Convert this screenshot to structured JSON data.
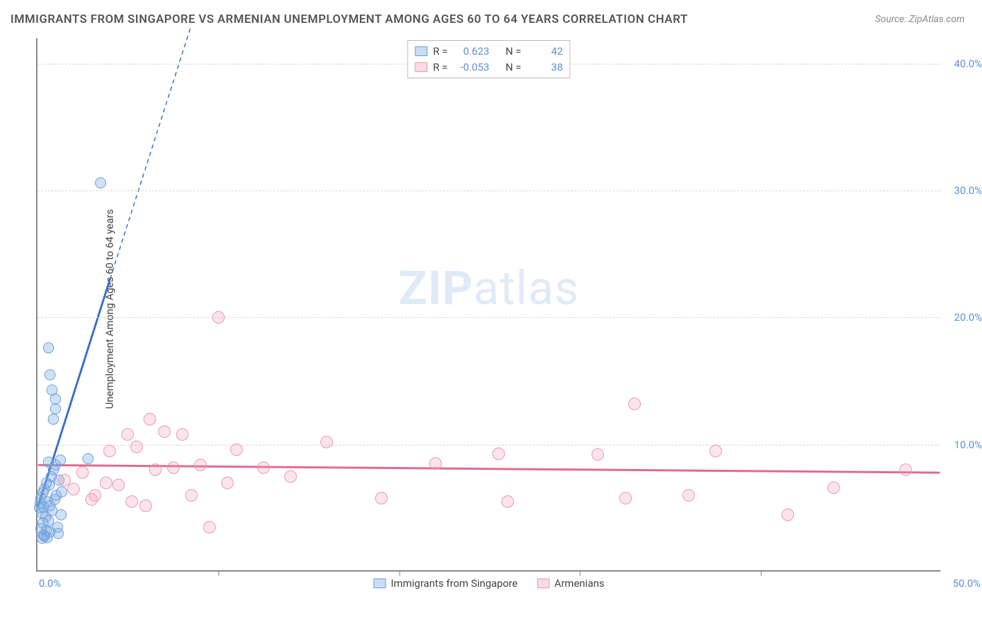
{
  "title": "IMMIGRANTS FROM SINGAPORE VS ARMENIAN UNEMPLOYMENT AMONG AGES 60 TO 64 YEARS CORRELATION CHART",
  "source": "Source: ZipAtlas.com",
  "y_axis_label": "Unemployment Among Ages 60 to 64 years",
  "watermark_bold": "ZIP",
  "watermark_rest": "atlas",
  "x_axis": {
    "min": 0,
    "max": 50,
    "ticks": [
      0,
      10,
      20,
      30,
      40,
      50
    ],
    "tick_labels": [
      "0.0%",
      "",
      "",
      "",
      "",
      "50.0%"
    ]
  },
  "y_axis": {
    "min": 0,
    "max": 42,
    "ticks": [
      10,
      20,
      30,
      40
    ],
    "tick_labels": [
      "10.0%",
      "20.0%",
      "30.0%",
      "40.0%"
    ]
  },
  "series": [
    {
      "name": "Immigrants from Singapore",
      "color_key": "blue",
      "r_value": "0.623",
      "n_value": "42",
      "trend": {
        "x1": 0,
        "y1": 5.0,
        "x2": 4.0,
        "y2": 23.0,
        "dash_x2": 8.5,
        "dash_y2": 43.0,
        "color": "#3a6fc4",
        "width": 3
      },
      "points": [
        [
          0.1,
          5.0
        ],
        [
          0.15,
          5.4
        ],
        [
          0.2,
          5.8
        ],
        [
          0.25,
          4.6
        ],
        [
          0.3,
          6.2
        ],
        [
          0.35,
          5.1
        ],
        [
          0.4,
          6.5
        ],
        [
          0.45,
          4.3
        ],
        [
          0.5,
          7.0
        ],
        [
          0.55,
          5.5
        ],
        [
          0.6,
          4.0
        ],
        [
          0.65,
          6.8
        ],
        [
          0.7,
          5.2
        ],
        [
          0.75,
          7.5
        ],
        [
          0.8,
          4.8
        ],
        [
          0.9,
          8.0
        ],
        [
          0.95,
          5.7
        ],
        [
          1.0,
          8.4
        ],
        [
          1.05,
          6.0
        ],
        [
          1.1,
          3.5
        ],
        [
          1.15,
          3.0
        ],
        [
          1.2,
          7.2
        ],
        [
          1.25,
          8.8
        ],
        [
          1.3,
          4.5
        ],
        [
          1.35,
          6.3
        ],
        [
          0.3,
          3.8
        ],
        [
          0.5,
          3.2
        ],
        [
          0.6,
          8.6
        ],
        [
          0.9,
          12.0
        ],
        [
          1.0,
          12.8
        ],
        [
          1.0,
          13.6
        ],
        [
          0.8,
          14.3
        ],
        [
          0.7,
          15.5
        ],
        [
          0.6,
          17.6
        ],
        [
          3.5,
          30.6
        ],
        [
          2.8,
          8.9
        ],
        [
          0.4,
          2.8
        ],
        [
          0.2,
          3.4
        ],
        [
          0.25,
          2.6
        ],
        [
          0.35,
          2.9
        ],
        [
          0.55,
          2.7
        ],
        [
          0.7,
          3.1
        ]
      ]
    },
    {
      "name": "Armenians",
      "color_key": "pink",
      "r_value": "-0.053",
      "n_value": "38",
      "trend": {
        "x1": 0,
        "y1": 8.3,
        "x2": 50,
        "y2": 7.7,
        "color": "#e06a8c",
        "width": 3
      },
      "points": [
        [
          1.5,
          7.2
        ],
        [
          2.0,
          6.5
        ],
        [
          2.5,
          7.8
        ],
        [
          3.0,
          5.7
        ],
        [
          3.2,
          6.0
        ],
        [
          3.8,
          7.0
        ],
        [
          4.0,
          9.5
        ],
        [
          4.5,
          6.8
        ],
        [
          5.0,
          10.8
        ],
        [
          5.2,
          5.5
        ],
        [
          5.5,
          9.8
        ],
        [
          6.0,
          5.2
        ],
        [
          6.2,
          12.0
        ],
        [
          6.5,
          8.0
        ],
        [
          7.0,
          11.0
        ],
        [
          7.5,
          8.2
        ],
        [
          8.0,
          10.8
        ],
        [
          8.5,
          6.0
        ],
        [
          9.0,
          8.4
        ],
        [
          9.5,
          3.5
        ],
        [
          10.0,
          20.0
        ],
        [
          10.5,
          7.0
        ],
        [
          11.0,
          9.6
        ],
        [
          12.5,
          8.2
        ],
        [
          14.0,
          7.5
        ],
        [
          16.0,
          10.2
        ],
        [
          19.0,
          5.8
        ],
        [
          22.0,
          8.5
        ],
        [
          25.5,
          9.3
        ],
        [
          26.0,
          5.5
        ],
        [
          31.0,
          9.2
        ],
        [
          32.5,
          5.8
        ],
        [
          33.0,
          13.2
        ],
        [
          36.0,
          6.0
        ],
        [
          37.5,
          9.5
        ],
        [
          41.5,
          4.5
        ],
        [
          44.0,
          6.6
        ],
        [
          48.0,
          8.0
        ]
      ]
    }
  ],
  "legend_top": {
    "r_label": "R =",
    "n_label": "N ="
  },
  "colors": {
    "blue_line": "#3a6fc4",
    "pink_line": "#e06a8c",
    "tick_text": "#5b8fd6"
  }
}
